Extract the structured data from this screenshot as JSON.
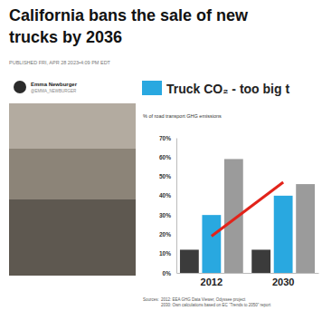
{
  "article": {
    "headline": [
      "California bans the sale of new",
      "trucks by 2036"
    ],
    "published": "PUBLISHED FRI, APR 28 2023•4:09 PM EDT",
    "author": "Emma Newburger",
    "handle": "@EMMA_NEWBURGER"
  },
  "chart_data": {
    "type": "bar",
    "title": "Truck CO₂ - too big t",
    "ylabel": "% of road transport GHG emissions",
    "categories": [
      "2012",
      "2030"
    ],
    "series": [
      {
        "color": "#3b3b3b",
        "values": [
          12,
          12
        ]
      },
      {
        "color": "#29a8e0",
        "values": [
          30,
          40
        ]
      },
      {
        "color": "#9b9b9b",
        "values": [
          59,
          46
        ]
      },
      {
        "type": "line",
        "color": "#e2231a",
        "values": [
          19,
          47
        ]
      }
    ],
    "ylim": [
      0,
      70
    ],
    "yticks": [
      {
        "value": 0,
        "label": "0%"
      },
      {
        "value": 10,
        "label": "10%"
      },
      {
        "value": 20,
        "label": "20%"
      },
      {
        "value": 30,
        "label": "30%"
      },
      {
        "value": 40,
        "label": "40%"
      },
      {
        "value": 50,
        "label": "50%"
      },
      {
        "value": 60,
        "label": "60%"
      },
      {
        "value": 70,
        "label": "70%"
      }
    ],
    "grid": false,
    "annotations": [
      "Sources:",
      "2012: EEA GHG Data Viewer, Odyssee project",
      "2030: Own calculations based on EC “Trends to 2050” report"
    ]
  }
}
